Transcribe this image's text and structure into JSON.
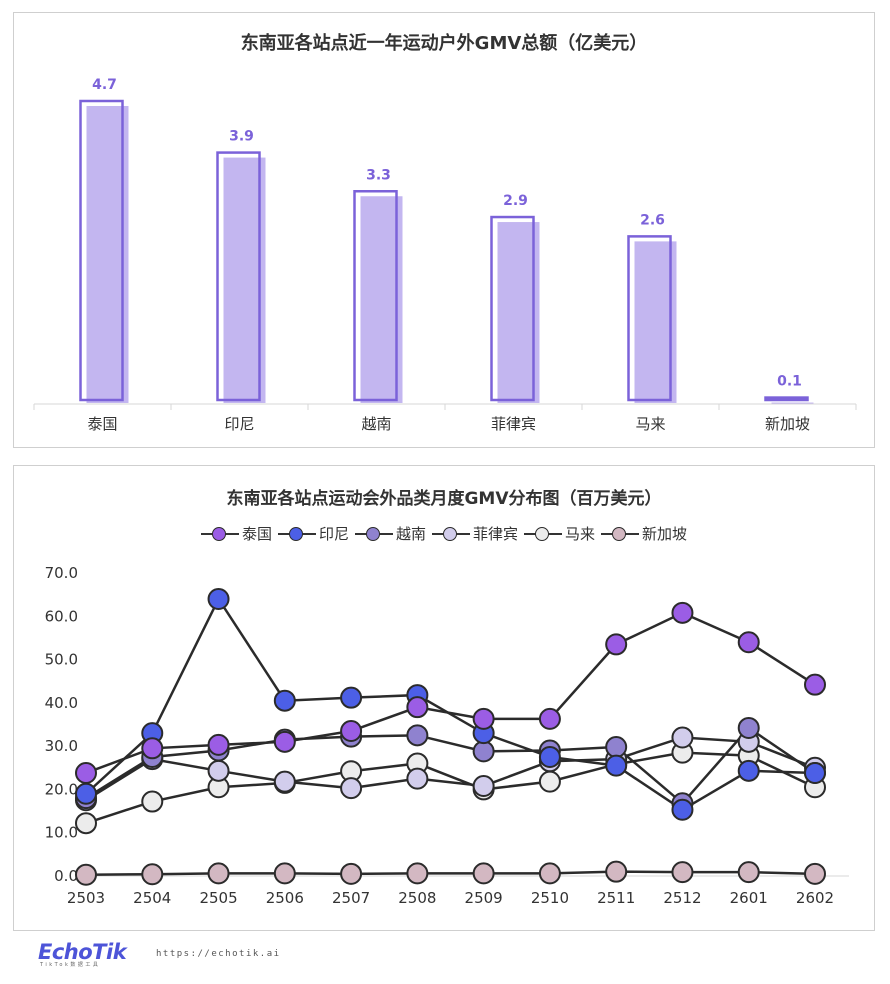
{
  "chart_data": [
    {
      "type": "bar",
      "title": "东南亚各站点近一年运动户外GMV总额（亿美元）",
      "categories": [
        "泰国",
        "印尼",
        "越南",
        "菲律宾",
        "马来",
        "新加坡"
      ],
      "values": [
        4.7,
        3.9,
        3.3,
        2.9,
        2.6,
        0.1
      ],
      "value_labels": [
        "4.7",
        "3.9",
        "3.3",
        "2.9",
        "2.6",
        "0.1"
      ],
      "colors": {
        "bar_fill": "#c3b6f0",
        "bar_outline": "#7b62d9",
        "label": "#7b62d9"
      }
    },
    {
      "type": "line",
      "title": "东南亚各站点运动会外品类月度GMV分布图（百万美元）",
      "x": [
        "2503",
        "2504",
        "2505",
        "2506",
        "2507",
        "2508",
        "2509",
        "2510",
        "2511",
        "2512",
        "2601",
        "2602"
      ],
      "ylim": [
        0,
        70
      ],
      "yticks": [
        "0.0",
        "10.0",
        "20.0",
        "30.0",
        "40.0",
        "50.0",
        "60.0",
        "70.0"
      ],
      "legend": "top",
      "series": [
        {
          "name": "泰国",
          "color": "#9b5de5",
          "values": [
            23.8,
            29.5,
            30.3,
            31.0,
            33.5,
            39.0,
            36.3,
            36.3,
            53.5,
            60.8,
            54.0,
            44.2
          ]
        },
        {
          "name": "印尼",
          "color": "#4c5fe6",
          "values": [
            19.0,
            33.0,
            64.0,
            40.5,
            41.2,
            41.8,
            33.0,
            27.5,
            25.5,
            15.3,
            24.3,
            23.8
          ]
        },
        {
          "name": "越南",
          "color": "#8f82cf",
          "values": [
            18.0,
            27.5,
            29.0,
            31.5,
            32.2,
            32.5,
            28.8,
            29.0,
            29.8,
            16.8,
            34.2,
            23.8
          ]
        },
        {
          "name": "菲律宾",
          "color": "#d2cdec",
          "values": [
            17.5,
            27.0,
            24.3,
            21.8,
            20.3,
            22.5,
            20.8,
            26.5,
            27.0,
            32.0,
            31.0,
            25.0
          ]
        },
        {
          "name": "马来",
          "color": "#ececec",
          "values": [
            12.2,
            17.2,
            20.5,
            21.5,
            24.2,
            26.0,
            20.0,
            21.8,
            25.8,
            28.5,
            27.8,
            20.5
          ]
        },
        {
          "name": "新加坡",
          "color": "#d3b8c2",
          "values": [
            0.3,
            0.4,
            0.6,
            0.6,
            0.5,
            0.6,
            0.6,
            0.6,
            1.0,
            0.9,
            0.9,
            0.5
          ]
        }
      ]
    }
  ],
  "footer": {
    "logo": "EchoTik",
    "logo_sub": "TikTok数据工具",
    "url": "https://echotik.ai"
  }
}
